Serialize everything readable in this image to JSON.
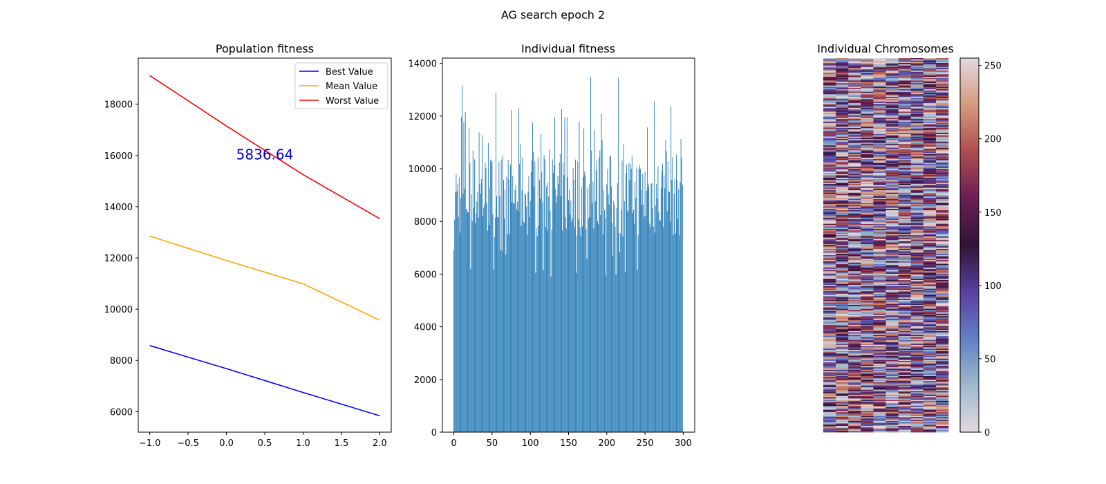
{
  "figure": {
    "title": "AG search epoch 2"
  },
  "chart_data": [
    {
      "type": "line",
      "title": "Population fitness",
      "x": [
        -1,
        0,
        1,
        2
      ],
      "xticks": [
        -1.0,
        -0.5,
        0.0,
        0.5,
        1.0,
        1.5,
        2.0
      ],
      "xtick_labels": [
        "−1.0",
        "−0.5",
        "0.0",
        "0.5",
        "1.0",
        "1.5",
        "2.0"
      ],
      "yticks": [
        6000,
        8000,
        10000,
        12000,
        14000,
        16000,
        18000
      ],
      "xlim": [
        -1.15,
        2.15
      ],
      "ylim": [
        5200,
        19800
      ],
      "series": [
        {
          "name": "Best Value",
          "color": "#0000ff",
          "values": [
            8580,
            7680,
            6750,
            5836.64
          ]
        },
        {
          "name": "Mean Value",
          "color": "#ffa500",
          "values": [
            12850,
            11900,
            10990,
            9570
          ]
        },
        {
          "name": "Worst Value",
          "color": "#ff0000",
          "values": [
            19120,
            17150,
            15250,
            13530
          ]
        }
      ],
      "legend": "top-right",
      "annotation": {
        "text": "5836.64",
        "x": 0.5,
        "y": 15850,
        "color": "#0000cc"
      }
    },
    {
      "type": "bar",
      "title": "Individual fitness",
      "color": "#1f77b4",
      "n_individuals": 300,
      "xticks": [
        0,
        50,
        100,
        150,
        200,
        250,
        300
      ],
      "yticks": [
        0,
        2000,
        4000,
        6000,
        8000,
        10000,
        12000,
        14000
      ],
      "xlim": [
        -15,
        315
      ],
      "ylim": [
        0,
        14200
      ],
      "value_range": [
        5836.64,
        13500
      ],
      "peaks": [
        {
          "x": 11,
          "value": 13150
        },
        {
          "x": 55,
          "value": 12880
        },
        {
          "x": 179,
          "value": 13500
        },
        {
          "x": 215,
          "value": 13450
        },
        {
          "x": 262,
          "value": 12570
        },
        {
          "x": 284,
          "value": 12360
        }
      ]
    },
    {
      "type": "heatmap",
      "title": "Individual Chromosomes",
      "rows": 300,
      "cols": 10,
      "colormap": "twilight",
      "colorbar": {
        "min": 0,
        "max": 255,
        "ticks": [
          0,
          50,
          100,
          150,
          200,
          250
        ]
      }
    }
  ]
}
